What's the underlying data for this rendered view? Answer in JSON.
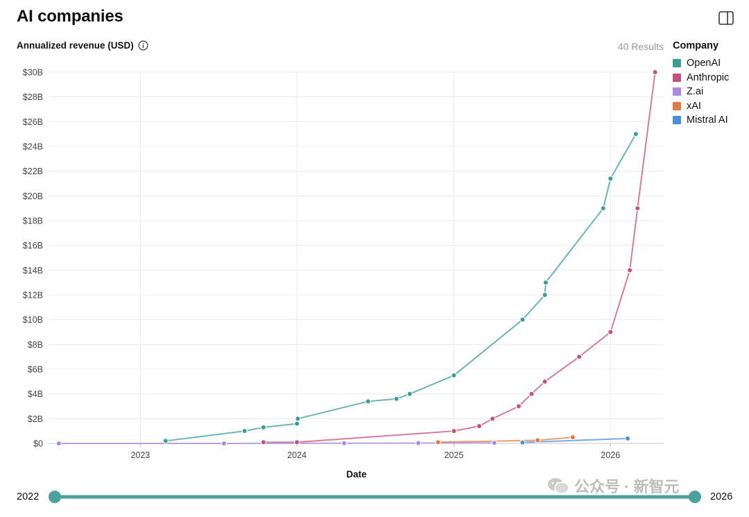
{
  "page": {
    "title": "AI companies",
    "results": "40 Results",
    "legend_title": "Company",
    "watermark": "公众号 · 新智元"
  },
  "slider": {
    "min_label": "2022",
    "max_label": "2026",
    "min": 2022,
    "max": 2026,
    "low": 2022,
    "high": 2026
  },
  "icons": {
    "panel": "panel-toggle-icon",
    "info": "info-icon",
    "watermark": "wechat-icon"
  },
  "chart_data": {
    "type": "line",
    "ylabel": "Annualized revenue (USD)",
    "xlabel": "Date",
    "xlim": [
      "2022-06-01",
      "2026-05-05"
    ],
    "ylim": [
      0,
      30
    ],
    "y_unit": "billions USD",
    "x_ticks": [
      {
        "label": "2023",
        "date": "2023-01-01"
      },
      {
        "label": "2024",
        "date": "2024-01-01"
      },
      {
        "label": "2025",
        "date": "2025-01-01"
      },
      {
        "label": "2026",
        "date": "2026-01-01"
      }
    ],
    "y_ticks": [
      {
        "label": "$0",
        "value": 0
      },
      {
        "label": "$2B",
        "value": 2
      },
      {
        "label": "$4B",
        "value": 4
      },
      {
        "label": "$6B",
        "value": 6
      },
      {
        "label": "$8B",
        "value": 8
      },
      {
        "label": "$10B",
        "value": 10
      },
      {
        "label": "$12B",
        "value": 12
      },
      {
        "label": "$14B",
        "value": 14
      },
      {
        "label": "$16B",
        "value": 16
      },
      {
        "label": "$18B",
        "value": 18
      },
      {
        "label": "$20B",
        "value": 20
      },
      {
        "label": "$22B",
        "value": 22
      },
      {
        "label": "$24B",
        "value": 24
      },
      {
        "label": "$26B",
        "value": 26
      },
      {
        "label": "$28B",
        "value": 28
      },
      {
        "label": "$30B",
        "value": 30
      }
    ],
    "grid": true,
    "legend_position": "right",
    "series": [
      {
        "name": "OpenAI",
        "color": "#3a9e94",
        "points": [
          {
            "date": "2023-03-01",
            "value": 0.2
          },
          {
            "date": "2023-09-01",
            "value": 1.0
          },
          {
            "date": "2023-10-15",
            "value": 1.3
          },
          {
            "date": "2024-01-01",
            "value": 1.6
          },
          {
            "date": "2024-01-03",
            "value": 2.0
          },
          {
            "date": "2024-06-15",
            "value": 3.4
          },
          {
            "date": "2024-08-20",
            "value": 3.6
          },
          {
            "date": "2024-09-20",
            "value": 4.0
          },
          {
            "date": "2025-01-01",
            "value": 5.5
          },
          {
            "date": "2025-06-10",
            "value": 10.0
          },
          {
            "date": "2025-08-01",
            "value": 12.0
          },
          {
            "date": "2025-08-03",
            "value": 13.0
          },
          {
            "date": "2025-12-15",
            "value": 19.0
          },
          {
            "date": "2026-01-01",
            "value": 21.4
          },
          {
            "date": "2026-03-01",
            "value": 25.0
          }
        ]
      },
      {
        "name": "Anthropic",
        "color": "#c45278",
        "points": [
          {
            "date": "2023-10-15",
            "value": 0.1
          },
          {
            "date": "2024-01-01",
            "value": 0.1
          },
          {
            "date": "2025-01-01",
            "value": 1.0
          },
          {
            "date": "2025-03-01",
            "value": 1.4
          },
          {
            "date": "2025-04-01",
            "value": 2.0
          },
          {
            "date": "2025-06-01",
            "value": 3.0
          },
          {
            "date": "2025-07-01",
            "value": 4.0
          },
          {
            "date": "2025-08-01",
            "value": 5.0
          },
          {
            "date": "2025-10-20",
            "value": 7.0
          },
          {
            "date": "2026-01-01",
            "value": 9.0
          },
          {
            "date": "2026-02-15",
            "value": 14.0
          },
          {
            "date": "2026-03-05",
            "value": 19.0
          },
          {
            "date": "2026-04-15",
            "value": 30.0
          }
        ]
      },
      {
        "name": "Z.ai",
        "color": "#a98ae0",
        "points": [
          {
            "date": "2022-06-25",
            "value": 0.0
          },
          {
            "date": "2023-07-15",
            "value": 0.0
          },
          {
            "date": "2024-04-20",
            "value": 0.02
          },
          {
            "date": "2024-10-10",
            "value": 0.03
          },
          {
            "date": "2025-04-05",
            "value": 0.05
          }
        ]
      },
      {
        "name": "xAI",
        "color": "#e07a45",
        "points": [
          {
            "date": "2024-11-25",
            "value": 0.1
          },
          {
            "date": "2025-07-15",
            "value": 0.25
          },
          {
            "date": "2025-10-05",
            "value": 0.5
          }
        ]
      },
      {
        "name": "Mistral AI",
        "color": "#4a8fd4",
        "points": [
          {
            "date": "2025-06-10",
            "value": 0.08
          },
          {
            "date": "2026-02-10",
            "value": 0.4
          }
        ]
      }
    ]
  }
}
